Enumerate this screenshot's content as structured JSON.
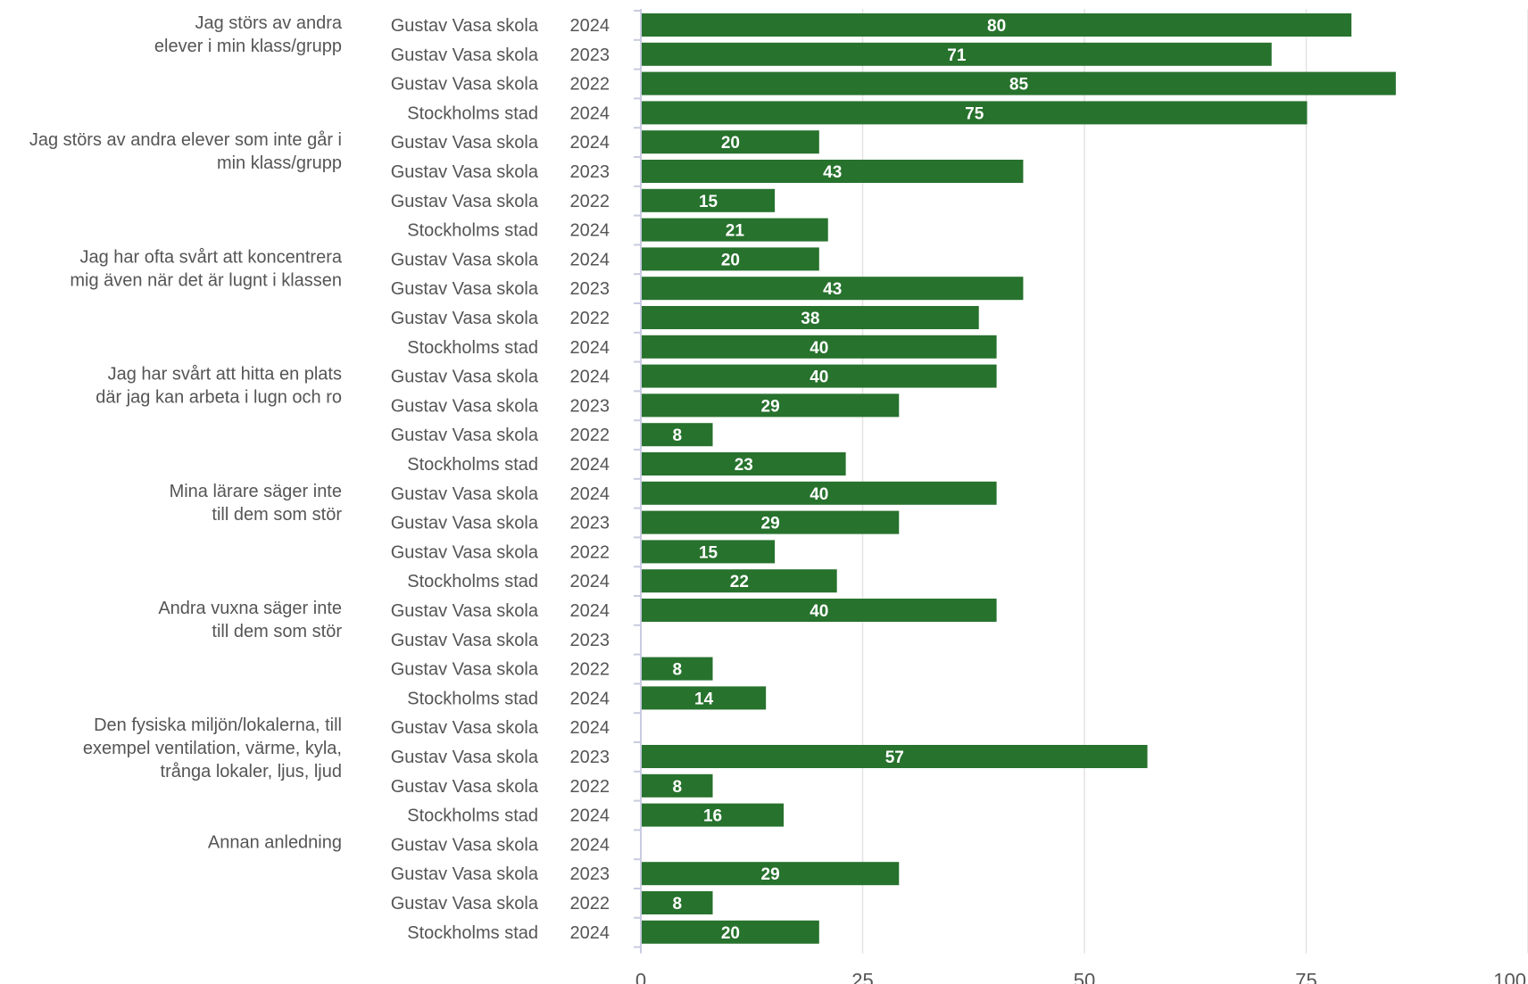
{
  "chart_data": {
    "type": "bar",
    "orientation": "horizontal",
    "xlim": [
      0,
      100
    ],
    "x_ticks": [
      "0",
      "25",
      "50",
      "75",
      "100"
    ],
    "grid": true,
    "colors": {
      "bar": "#27722d",
      "label": "#555555",
      "grid": "#e3e3e3",
      "axis": "#c9cbe0"
    },
    "groups": [
      {
        "label": [
          "Jag störs av andra",
          "elever i min klass/grupp"
        ],
        "rows": [
          {
            "name": "Gustav Vasa skola",
            "year": "2024",
            "value": 80
          },
          {
            "name": "Gustav Vasa skola",
            "year": "2023",
            "value": 71
          },
          {
            "name": "Gustav Vasa skola",
            "year": "2022",
            "value": 85
          },
          {
            "name": "Stockholms stad",
            "year": "2024",
            "value": 75
          }
        ]
      },
      {
        "label": [
          "Jag störs av andra elever som inte går i",
          "min klass/grupp"
        ],
        "rows": [
          {
            "name": "Gustav Vasa skola",
            "year": "2024",
            "value": 20
          },
          {
            "name": "Gustav Vasa skola",
            "year": "2023",
            "value": 43
          },
          {
            "name": "Gustav Vasa skola",
            "year": "2022",
            "value": 15
          },
          {
            "name": "Stockholms stad",
            "year": "2024",
            "value": 21
          }
        ]
      },
      {
        "label": [
          "Jag har ofta svårt att koncentrera",
          "mig även när det är lugnt i klassen"
        ],
        "rows": [
          {
            "name": "Gustav Vasa skola",
            "year": "2024",
            "value": 20
          },
          {
            "name": "Gustav Vasa skola",
            "year": "2023",
            "value": 43
          },
          {
            "name": "Gustav Vasa skola",
            "year": "2022",
            "value": 38
          },
          {
            "name": "Stockholms stad",
            "year": "2024",
            "value": 40
          }
        ]
      },
      {
        "label": [
          "Jag har svårt att hitta en plats",
          "där jag kan arbeta i lugn och ro"
        ],
        "rows": [
          {
            "name": "Gustav Vasa skola",
            "year": "2024",
            "value": 40
          },
          {
            "name": "Gustav Vasa skola",
            "year": "2023",
            "value": 29
          },
          {
            "name": "Gustav Vasa skola",
            "year": "2022",
            "value": 8
          },
          {
            "name": "Stockholms stad",
            "year": "2024",
            "value": 23
          }
        ]
      },
      {
        "label": [
          "Mina lärare säger inte",
          "till dem som stör"
        ],
        "rows": [
          {
            "name": "Gustav Vasa skola",
            "year": "2024",
            "value": 40
          },
          {
            "name": "Gustav Vasa skola",
            "year": "2023",
            "value": 29
          },
          {
            "name": "Gustav Vasa skola",
            "year": "2022",
            "value": 15
          },
          {
            "name": "Stockholms stad",
            "year": "2024",
            "value": 22
          }
        ]
      },
      {
        "label": [
          "Andra vuxna säger inte",
          "till dem som stör"
        ],
        "rows": [
          {
            "name": "Gustav Vasa skola",
            "year": "2024",
            "value": 40
          },
          {
            "name": "Gustav Vasa skola",
            "year": "2023",
            "value": null
          },
          {
            "name": "Gustav Vasa skola",
            "year": "2022",
            "value": 8
          },
          {
            "name": "Stockholms stad",
            "year": "2024",
            "value": 14
          }
        ]
      },
      {
        "label": [
          "Den fysiska miljön/lokalerna, till",
          "exempel ventilation, värme, kyla,",
          "trånga lokaler, ljus, ljud"
        ],
        "rows": [
          {
            "name": "Gustav Vasa skola",
            "year": "2024",
            "value": null
          },
          {
            "name": "Gustav Vasa skola",
            "year": "2023",
            "value": 57
          },
          {
            "name": "Gustav Vasa skola",
            "year": "2022",
            "value": 8
          },
          {
            "name": "Stockholms stad",
            "year": "2024",
            "value": 16
          }
        ]
      },
      {
        "label": [
          "Annan anledning"
        ],
        "rows": [
          {
            "name": "Gustav Vasa skola",
            "year": "2024",
            "value": null
          },
          {
            "name": "Gustav Vasa skola",
            "year": "2023",
            "value": 29
          },
          {
            "name": "Gustav Vasa skola",
            "year": "2022",
            "value": 8
          },
          {
            "name": "Stockholms stad",
            "year": "2024",
            "value": 20
          }
        ]
      }
    ]
  }
}
